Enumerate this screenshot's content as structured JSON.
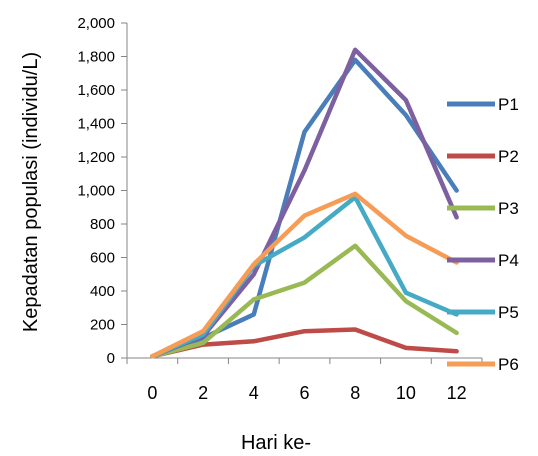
{
  "chart_data": {
    "type": "line",
    "title": "",
    "xlabel": "Hari ke-",
    "ylabel": "Kepadatan populasi (individu/L)",
    "x": [
      0,
      2,
      4,
      6,
      8,
      10,
      12
    ],
    "x_tick_labels": [
      "0",
      "2",
      "4",
      "6",
      "8",
      "10",
      "12"
    ],
    "y_tick_labels": [
      "0",
      "200",
      "400",
      "600",
      "800",
      "1,000",
      "1,200",
      "1,400",
      "1,600",
      "1,800",
      "2,000"
    ],
    "ylim": [
      0,
      2000
    ],
    "grid": false,
    "legend_position": "right",
    "series": [
      {
        "name": "P1",
        "color": "#4A7EBB",
        "values": [
          10,
          120,
          260,
          1350,
          1780,
          1450,
          1000
        ]
      },
      {
        "name": "P2",
        "color": "#BE4B48",
        "values": [
          10,
          80,
          100,
          160,
          170,
          60,
          40
        ]
      },
      {
        "name": "P3",
        "color": "#98B954",
        "values": [
          10,
          90,
          350,
          450,
          670,
          340,
          150
        ]
      },
      {
        "name": "P4",
        "color": "#7D60A0",
        "values": [
          10,
          130,
          500,
          1120,
          1840,
          1540,
          840
        ]
      },
      {
        "name": "P5",
        "color": "#46AAC5",
        "values": [
          10,
          140,
          550,
          720,
          960,
          390,
          260
        ]
      },
      {
        "name": "P6",
        "color": "#F59D56",
        "values": [
          10,
          160,
          560,
          850,
          980,
          730,
          570
        ]
      }
    ]
  }
}
